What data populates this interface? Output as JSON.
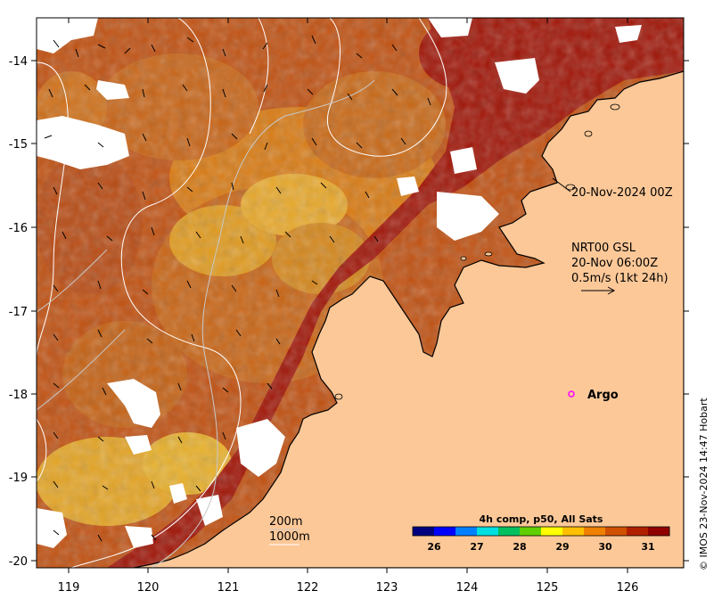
{
  "map": {
    "longitude_ticks": [
      "119",
      "120",
      "121",
      "122",
      "123",
      "124",
      "125",
      "126"
    ],
    "latitude_ticks": [
      "-14",
      "-15",
      "-16",
      "-17",
      "-18",
      "-19",
      "-20"
    ],
    "lon_range": [
      118.6,
      126.7
    ],
    "lat_range": [
      -20.2,
      -13.6
    ],
    "land_color": "#fcc898",
    "nodata_color": "#ffffff",
    "coast_color": "#000000"
  },
  "annotations": {
    "time_label": "20-Nov-2024 00Z",
    "current_title": "NRT00 GSL",
    "current_time": "20-Nov 06:00Z",
    "current_scale": "0.5m/s (1kt 24h)",
    "argo_label": "Argo",
    "argo_marker_color": "#ff00ff",
    "argo_position": {
      "lon": 125.3,
      "lat": -18.0
    },
    "isobath_200": "200m",
    "isobath_1000": "1000m",
    "isobath_200_color": "#c8c8c8",
    "isobath_1000_color": "#ffffff"
  },
  "colorbar": {
    "title": "4h comp, p50, All Sats",
    "ticks": [
      "26",
      "27",
      "28",
      "29",
      "30",
      "31"
    ],
    "range": [
      25.5,
      31.5
    ],
    "colors": [
      "#00007f",
      "#0000ff",
      "#0080ff",
      "#00e0e0",
      "#00c060",
      "#60d000",
      "#ffff00",
      "#ffc000",
      "#f08000",
      "#d05000",
      "#b02000",
      "#900000"
    ]
  },
  "credit": "© IMOS 23-Nov-2024 14:47 Hobart"
}
